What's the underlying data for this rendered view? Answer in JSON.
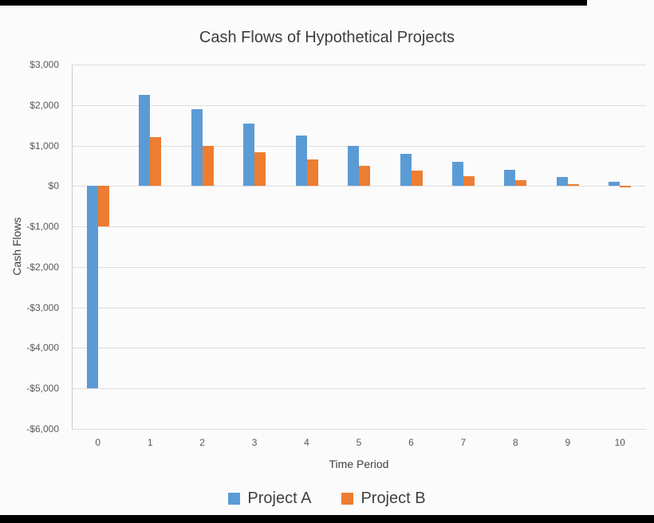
{
  "chart_data": {
    "type": "bar",
    "title": "Cash Flows of Hypothetical Projects",
    "xlabel": "Time Period",
    "ylabel": "Cash Flows",
    "categories": [
      "0",
      "1",
      "2",
      "3",
      "4",
      "5",
      "6",
      "7",
      "8",
      "9",
      "10"
    ],
    "series": [
      {
        "name": "Project A",
        "color": "#5B9BD5",
        "values": [
          -5000,
          2250,
          1900,
          1550,
          1250,
          1000,
          800,
          600,
          400,
          225,
          100
        ]
      },
      {
        "name": "Project B",
        "color": "#ED7D31",
        "values": [
          -1000,
          1200,
          1000,
          825,
          650,
          500,
          375,
          250,
          150,
          50,
          -25
        ]
      }
    ],
    "ylim": [
      -6000,
      3000
    ],
    "ytick_step": 1000,
    "ytick_labels": [
      "$3,000",
      "$2,000",
      "$1,000",
      "$0",
      "-$1,000",
      "-$2,000",
      "-$3,000",
      "-$4,000",
      "-$5,000",
      "-$6,000"
    ],
    "grid": true,
    "legend_position": "bottom"
  }
}
